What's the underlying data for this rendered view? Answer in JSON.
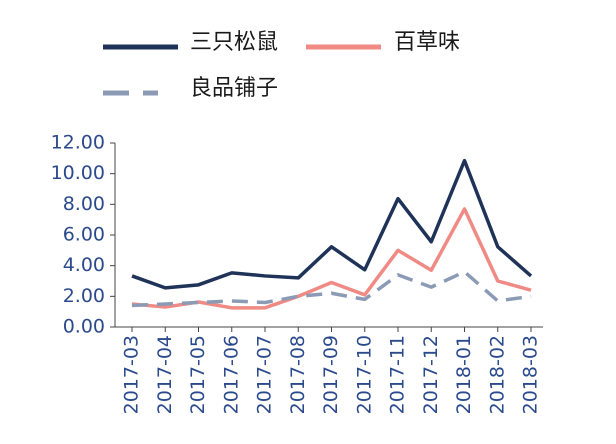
{
  "chart_data": {
    "type": "line",
    "categories": [
      "2017-03",
      "2017-04",
      "2017-05",
      "2017-06",
      "2017-07",
      "2017-08",
      "2017-09",
      "2017-10",
      "2017-11",
      "2017-12",
      "2018-01",
      "2018-02",
      "2018-03"
    ],
    "series": [
      {
        "name": "三只松鼠",
        "color": "#1f3358",
        "values": [
          3.33,
          2.55,
          2.75,
          3.53,
          3.33,
          3.2,
          5.23,
          3.73,
          8.37,
          5.56,
          10.85,
          5.23,
          3.33
        ]
      },
      {
        "name": "百草味",
        "color": "#f08a84",
        "values": [
          1.5,
          1.3,
          1.63,
          1.25,
          1.25,
          2.0,
          2.9,
          2.1,
          5.0,
          3.7,
          7.7,
          3.0,
          2.4
        ]
      },
      {
        "name": "良品铺子",
        "color": "#8c9bb5",
        "dashed": true,
        "values": [
          1.4,
          1.5,
          1.6,
          1.7,
          1.6,
          2.0,
          2.2,
          1.8,
          3.4,
          2.6,
          3.6,
          1.7,
          2.0
        ]
      }
    ],
    "ylim": [
      0,
      12
    ],
    "yticks": [
      {
        "value": 0,
        "label": "0.00"
      },
      {
        "value": 2,
        "label": "2.00"
      },
      {
        "value": 4,
        "label": "4.00"
      },
      {
        "value": 6,
        "label": "6.00"
      },
      {
        "value": 8,
        "label": "8.00"
      },
      {
        "value": 10,
        "label": "10.00"
      },
      {
        "value": 12,
        "label": "12.00"
      }
    ]
  }
}
